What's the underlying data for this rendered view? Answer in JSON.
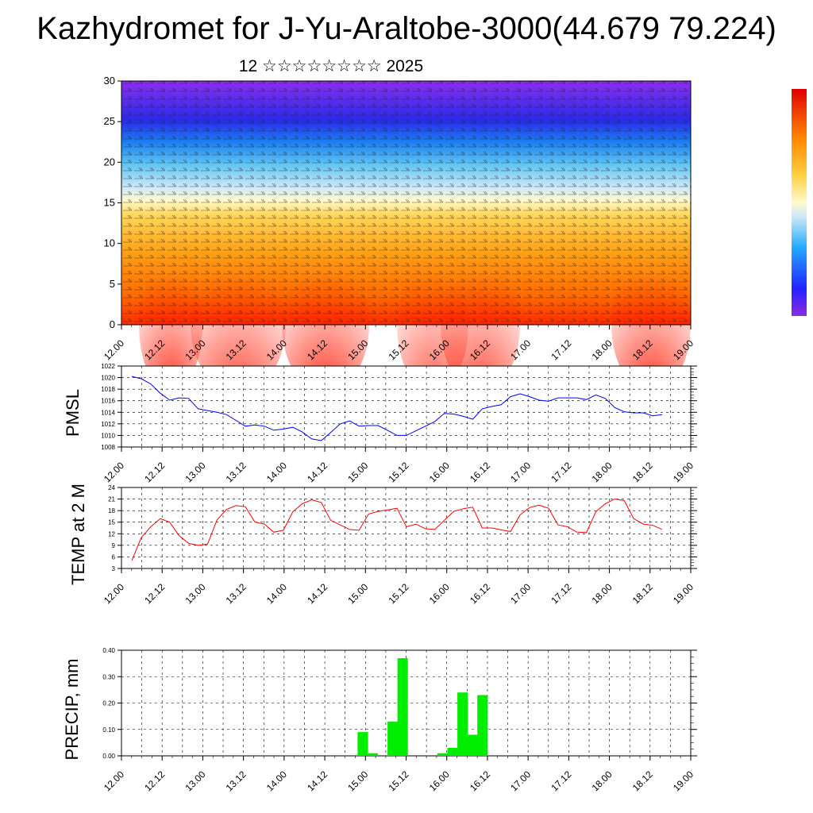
{
  "title": "Kazhydromet for J-Yu-Araltobe-3000(44.679 79.224)",
  "subtitle": "12 ☆☆☆☆☆☆☆☆ 2025",
  "colors": {
    "pmsl": "#0000ff",
    "temp": "#ff0000",
    "precip": "#00ee00"
  },
  "chart_data": [
    {
      "type": "heatmap",
      "ylim": [
        0,
        30
      ],
      "yticks": [
        "0",
        "5",
        "10",
        "15",
        "20",
        "25",
        "30"
      ],
      "xticks": [
        "12.00",
        "12.12",
        "13.00",
        "13.12",
        "14.00",
        "14.12",
        "15.00",
        "15.12",
        "16.00",
        "16.12",
        "17.00",
        "17.12",
        "18.00",
        "18.12",
        "19.00"
      ],
      "overlay": "wind barbs",
      "colorbar": "vertical, top-right"
    },
    {
      "type": "line",
      "ylabel": "PMSL",
      "ylim": [
        1008,
        1022
      ],
      "yticks": [
        "1008",
        "1010",
        "1012",
        "1014",
        "1016",
        "1018",
        "1020",
        "1022"
      ],
      "xticks": [
        "12.00",
        "12.12",
        "13.00",
        "13.12",
        "14.00",
        "14.12",
        "15.00",
        "15.12",
        "16.00",
        "16.12",
        "17.00",
        "17.12",
        "18.00",
        "18.12",
        "19.00"
      ],
      "grid": true,
      "values": [
        1020.2,
        1019.8,
        1018.9,
        1017.3,
        1016.1,
        1016.5,
        1016.4,
        1014.6,
        1014.3,
        1014.0,
        1013.6,
        1012.6,
        1011.6,
        1011.8,
        1011.6,
        1010.9,
        1011.1,
        1011.4,
        1010.6,
        1009.4,
        1009.1,
        1010.5,
        1012.0,
        1012.5,
        1011.6,
        1011.7,
        1011.7,
        1010.9,
        1010.0,
        1010.0,
        1010.8,
        1011.6,
        1012.4,
        1013.8,
        1013.7,
        1013.3,
        1012.8,
        1014.6,
        1015.0,
        1015.3,
        1016.7,
        1017.2,
        1016.7,
        1016.1,
        1015.9,
        1016.5,
        1016.5,
        1016.5,
        1016.2,
        1017.0,
        1016.4,
        1014.8,
        1014.1,
        1013.9,
        1013.9,
        1013.4,
        1013.6
      ]
    },
    {
      "type": "line",
      "ylabel": "TEMP at 2 M",
      "ylim": [
        3,
        24
      ],
      "yticks": [
        "3",
        "6",
        "9",
        "12",
        "15",
        "18",
        "21",
        "24"
      ],
      "xticks": [
        "12.00",
        "12.12",
        "13.00",
        "13.12",
        "14.00",
        "14.12",
        "15.00",
        "15.12",
        "16.00",
        "16.12",
        "17.00",
        "17.12",
        "18.00",
        "18.12",
        "19.00"
      ],
      "grid": true,
      "values": [
        5.0,
        11.0,
        13.8,
        15.9,
        15.0,
        11.5,
        9.5,
        9.0,
        9.3,
        15.6,
        18.3,
        19.3,
        19.0,
        15.0,
        14.5,
        12.4,
        12.9,
        17.7,
        19.8,
        20.8,
        20.1,
        15.5,
        14.3,
        13.1,
        12.9,
        17.1,
        17.8,
        18.2,
        18.6,
        13.8,
        14.5,
        13.3,
        13.1,
        15.5,
        17.8,
        18.5,
        18.9,
        13.5,
        13.5,
        13.0,
        12.6,
        16.9,
        18.8,
        19.4,
        18.6,
        14.3,
        13.8,
        12.4,
        12.3,
        17.7,
        19.8,
        21.0,
        20.6,
        15.9,
        14.5,
        14.2,
        13.1
      ]
    },
    {
      "type": "bar",
      "ylabel": "PRECIP, mm",
      "ylim": [
        0,
        0.4
      ],
      "yticks": [
        "0.00",
        "0.10",
        "0.20",
        "0.30",
        "0.40"
      ],
      "xticks": [
        "12.00",
        "12.12",
        "13.00",
        "13.12",
        "14.00",
        "14.12",
        "15.00",
        "15.12",
        "16.00",
        "16.12",
        "17.00",
        "17.12",
        "18.00",
        "18.12",
        "19.00"
      ],
      "grid": true,
      "bars": [
        {
          "step": 23,
          "value": 0.09
        },
        {
          "step": 24,
          "value": 0.01
        },
        {
          "step": 26,
          "value": 0.13
        },
        {
          "step": 27,
          "value": 0.37
        },
        {
          "step": 31,
          "value": 0.01
        },
        {
          "step": 32,
          "value": 0.03
        },
        {
          "step": 33,
          "value": 0.24
        },
        {
          "step": 34,
          "value": 0.08
        },
        {
          "step": 35,
          "value": 0.23
        }
      ]
    }
  ]
}
